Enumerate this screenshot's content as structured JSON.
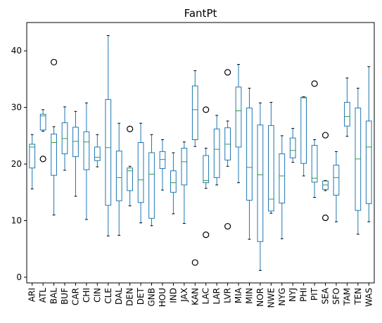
{
  "chart_data": {
    "type": "box",
    "title": "FantPt",
    "xlabel": "",
    "ylabel": "",
    "ylim": [
      -1,
      45
    ],
    "yticks": [
      0,
      10,
      20,
      30,
      40
    ],
    "grid": false,
    "colors": {
      "box": "#1f77b4",
      "median": "#2ca02c",
      "flier": "#000000",
      "axis": "#000000"
    },
    "categories": [
      "ARI",
      "ATL",
      "BAL",
      "BUF",
      "CAR",
      "CHI",
      "CIN",
      "CLE",
      "DAL",
      "DEN",
      "DET",
      "GNB",
      "HOU",
      "IND",
      "JAX",
      "KAN",
      "LAC",
      "LAR",
      "LVR",
      "MIA",
      "MIN",
      "NOR",
      "NWE",
      "NYG",
      "NYJ",
      "PHI",
      "PIT",
      "SEA",
      "SFO",
      "TAM",
      "TEN",
      "WAS"
    ],
    "boxes": [
      {
        "whislo": 15.6,
        "q1": 19.3,
        "med": 23.0,
        "q3": 23.5,
        "whishi": 25.2,
        "fliers": []
      },
      {
        "whislo": 25.8,
        "q1": 26.0,
        "med": 28.5,
        "q3": 28.8,
        "whishi": 29.6,
        "fliers": [
          20.9
        ]
      },
      {
        "whislo": 11.0,
        "q1": 18.0,
        "med": 23.8,
        "q3": 25.3,
        "whishi": 26.6,
        "fliers": [
          38.0
        ]
      },
      {
        "whislo": 18.9,
        "q1": 21.8,
        "med": 24.5,
        "q3": 27.3,
        "whishi": 30.1,
        "fliers": []
      },
      {
        "whislo": 14.3,
        "q1": 21.3,
        "med": 24.0,
        "q3": 26.5,
        "whishi": 29.3,
        "fliers": []
      },
      {
        "whislo": 10.2,
        "q1": 19.0,
        "med": 23.9,
        "q3": 25.7,
        "whishi": 30.8,
        "fliers": []
      },
      {
        "whislo": 19.5,
        "q1": 20.6,
        "med": 21.2,
        "q3": 23.0,
        "whishi": 25.2,
        "fliers": []
      },
      {
        "whislo": 7.3,
        "q1": 12.7,
        "med": 22.9,
        "q3": 31.4,
        "whishi": 42.7,
        "fliers": []
      },
      {
        "whislo": 7.4,
        "q1": 13.5,
        "med": 17.6,
        "q3": 22.3,
        "whishi": 27.2,
        "fliers": []
      },
      {
        "whislo": 12.6,
        "q1": 15.3,
        "med": 18.8,
        "q3": 19.3,
        "whishi": 19.6,
        "fliers": [
          26.2
        ]
      },
      {
        "whislo": 9.6,
        "q1": 13.2,
        "med": 17.2,
        "q3": 23.8,
        "whishi": 27.2,
        "fliers": []
      },
      {
        "whislo": 9.1,
        "q1": 10.4,
        "med": 18.2,
        "q3": 22.0,
        "whishi": 25.2,
        "fliers": []
      },
      {
        "whislo": 15.4,
        "q1": 19.2,
        "med": 20.8,
        "q3": 22.2,
        "whishi": 24.3,
        "fliers": []
      },
      {
        "whislo": 11.2,
        "q1": 15.0,
        "med": 16.7,
        "q3": 18.8,
        "whishi": 22.0,
        "fliers": []
      },
      {
        "whislo": 9.5,
        "q1": 16.3,
        "med": 20.4,
        "q3": 22.8,
        "whishi": 23.9,
        "fliers": []
      },
      {
        "whislo": 23.1,
        "q1": 24.3,
        "med": 29.6,
        "q3": 33.8,
        "whishi": 36.5,
        "fliers": [
          2.6
        ]
      },
      {
        "whislo": 15.7,
        "q1": 16.7,
        "med": 17.1,
        "q3": 21.5,
        "whishi": 22.8,
        "fliers": [
          29.6,
          7.5
        ]
      },
      {
        "whislo": 16.3,
        "q1": 17.6,
        "med": 22.6,
        "q3": 26.2,
        "whishi": 28.6,
        "fliers": []
      },
      {
        "whislo": 19.6,
        "q1": 20.7,
        "med": 23.5,
        "q3": 26.4,
        "whishi": 27.6,
        "fliers": [
          36.2,
          9.0
        ]
      },
      {
        "whislo": 16.7,
        "q1": 23.0,
        "med": 29.4,
        "q3": 33.6,
        "whishi": 37.6,
        "fliers": []
      },
      {
        "whislo": 6.7,
        "q1": 13.6,
        "med": 19.4,
        "q3": 29.9,
        "whishi": 33.4,
        "fliers": []
      },
      {
        "whislo": 1.2,
        "q1": 6.3,
        "med": 18.1,
        "q3": 26.9,
        "whishi": 30.8,
        "fliers": []
      },
      {
        "whislo": 11.3,
        "q1": 11.7,
        "med": 13.8,
        "q3": 26.8,
        "whishi": 30.9,
        "fliers": []
      },
      {
        "whislo": 6.8,
        "q1": 13.1,
        "med": 17.9,
        "q3": 21.8,
        "whishi": 25.0,
        "fliers": []
      },
      {
        "whislo": 20.3,
        "q1": 21.1,
        "med": 22.4,
        "q3": 24.6,
        "whishi": 26.3,
        "fliers": []
      },
      {
        "whislo": 17.9,
        "q1": 20.1,
        "med": 31.7,
        "q3": 31.8,
        "whishi": 31.9,
        "fliers": []
      },
      {
        "whislo": 14.1,
        "q1": 16.8,
        "med": 17.5,
        "q3": 23.3,
        "whishi": 24.3,
        "fliers": [
          34.2
        ]
      },
      {
        "whislo": 15.3,
        "q1": 15.5,
        "med": 16.3,
        "q3": 17.0,
        "whishi": 17.1,
        "fliers": [
          25.1,
          10.5
        ]
      },
      {
        "whislo": 9.8,
        "q1": 14.5,
        "med": 17.6,
        "q3": 19.8,
        "whishi": 22.2,
        "fliers": []
      },
      {
        "whislo": 24.9,
        "q1": 26.7,
        "med": 28.4,
        "q3": 30.9,
        "whishi": 35.2,
        "fliers": []
      },
      {
        "whislo": 7.6,
        "q1": 11.8,
        "med": 20.9,
        "q3": 29.9,
        "whishi": 33.4,
        "fliers": []
      },
      {
        "whislo": 9.8,
        "q1": 13.0,
        "med": 23.0,
        "q3": 27.6,
        "whishi": 37.2,
        "fliers": []
      }
    ]
  }
}
